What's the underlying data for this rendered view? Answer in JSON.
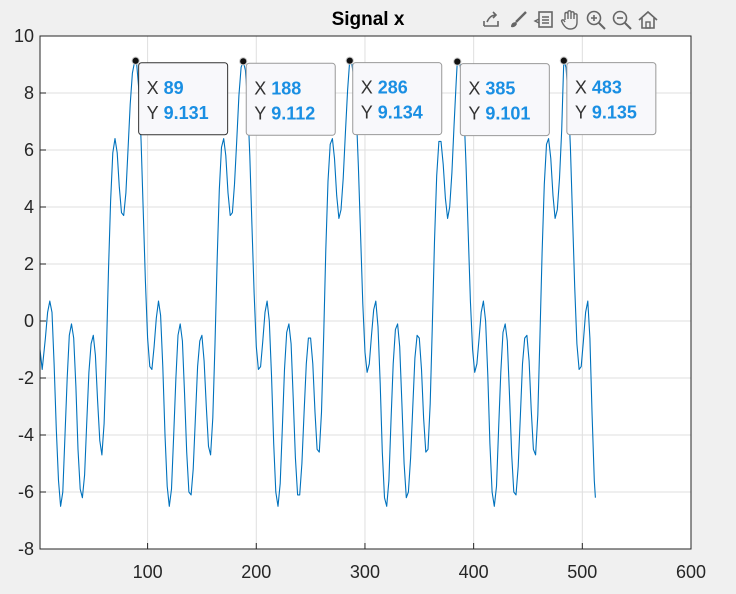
{
  "chart_data": {
    "type": "line",
    "title": "Signal x",
    "xlabel": "",
    "ylabel": "",
    "xlim": [
      1,
      600
    ],
    "ylim": [
      -8,
      10
    ],
    "xticks": [
      100,
      200,
      300,
      400,
      500,
      600
    ],
    "yticks": [
      -8,
      -6,
      -4,
      -2,
      0,
      2,
      4,
      6,
      8,
      10
    ],
    "grid": true,
    "line_color": "#0072BD",
    "datatip_value_color": "#1a8fe3",
    "series": [
      {
        "points": [
          [
            1,
            -1.0
          ],
          [
            3,
            -1.7
          ],
          [
            6,
            -0.6
          ],
          [
            8,
            0.3
          ],
          [
            10,
            0.7
          ],
          [
            12,
            0.3
          ],
          [
            14,
            -1.5
          ],
          [
            16,
            -3.8
          ],
          [
            18,
            -5.6
          ],
          [
            20,
            -6.5
          ],
          [
            22,
            -6.0
          ],
          [
            24,
            -4.0
          ],
          [
            26,
            -2.0
          ],
          [
            28,
            -0.5
          ],
          [
            30,
            -0.1
          ],
          [
            32,
            -0.6
          ],
          [
            34,
            -2.3
          ],
          [
            36,
            -4.5
          ],
          [
            38,
            -5.9
          ],
          [
            40,
            -6.2
          ],
          [
            42,
            -5.4
          ],
          [
            44,
            -3.6
          ],
          [
            46,
            -1.8
          ],
          [
            48,
            -0.8
          ],
          [
            50,
            -0.5
          ],
          [
            52,
            -1.2
          ],
          [
            54,
            -2.8
          ],
          [
            56,
            -4.2
          ],
          [
            58,
            -4.7
          ],
          [
            60,
            -3.6
          ],
          [
            62,
            -1.2
          ],
          [
            64,
            1.8
          ],
          [
            66,
            4.2
          ],
          [
            68,
            5.9
          ],
          [
            70,
            6.4
          ],
          [
            72,
            5.9
          ],
          [
            74,
            4.7
          ],
          [
            76,
            3.8
          ],
          [
            78,
            3.7
          ],
          [
            80,
            4.5
          ],
          [
            82,
            6.0
          ],
          [
            84,
            7.6
          ],
          [
            86,
            8.7
          ],
          [
            88,
            9.1
          ],
          [
            89,
            9.131
          ],
          [
            90,
            9.0
          ],
          [
            92,
            8.1
          ],
          [
            94,
            6.3
          ],
          [
            96,
            3.9
          ],
          [
            98,
            1.4
          ],
          [
            100,
            -0.6
          ],
          [
            102,
            -1.6
          ],
          [
            104,
            -1.7
          ],
          [
            106,
            -0.9
          ],
          [
            108,
            0.1
          ],
          [
            110,
            0.7
          ],
          [
            112,
            0.2
          ],
          [
            114,
            -1.6
          ],
          [
            116,
            -4.0
          ],
          [
            118,
            -5.8
          ],
          [
            120,
            -6.5
          ],
          [
            122,
            -5.9
          ],
          [
            124,
            -4.0
          ],
          [
            126,
            -2.0
          ],
          [
            128,
            -0.5
          ],
          [
            130,
            -0.1
          ],
          [
            132,
            -0.7
          ],
          [
            134,
            -2.5
          ],
          [
            136,
            -4.6
          ],
          [
            138,
            -6.0
          ],
          [
            140,
            -6.1
          ],
          [
            142,
            -5.2
          ],
          [
            144,
            -3.4
          ],
          [
            146,
            -1.6
          ],
          [
            148,
            -0.7
          ],
          [
            150,
            -0.5
          ],
          [
            152,
            -1.4
          ],
          [
            154,
            -3.0
          ],
          [
            156,
            -4.4
          ],
          [
            158,
            -4.7
          ],
          [
            160,
            -3.4
          ],
          [
            162,
            -0.8
          ],
          [
            164,
            2.2
          ],
          [
            166,
            4.6
          ],
          [
            168,
            6.1
          ],
          [
            170,
            6.4
          ],
          [
            172,
            5.8
          ],
          [
            174,
            4.5
          ],
          [
            176,
            3.7
          ],
          [
            178,
            3.8
          ],
          [
            180,
            4.8
          ],
          [
            182,
            6.3
          ],
          [
            184,
            7.9
          ],
          [
            186,
            8.9
          ],
          [
            188,
            9.112
          ],
          [
            190,
            8.8
          ],
          [
            192,
            7.7
          ],
          [
            194,
            5.8
          ],
          [
            196,
            3.4
          ],
          [
            198,
            1.0
          ],
          [
            200,
            -0.9
          ],
          [
            202,
            -1.7
          ],
          [
            204,
            -1.6
          ],
          [
            206,
            -0.7
          ],
          [
            208,
            0.3
          ],
          [
            210,
            0.7
          ],
          [
            212,
            0.0
          ],
          [
            214,
            -1.9
          ],
          [
            216,
            -4.3
          ],
          [
            218,
            -6.0
          ],
          [
            220,
            -6.5
          ],
          [
            222,
            -5.7
          ],
          [
            224,
            -3.7
          ],
          [
            226,
            -1.7
          ],
          [
            228,
            -0.4
          ],
          [
            230,
            -0.1
          ],
          [
            232,
            -0.8
          ],
          [
            234,
            -2.7
          ],
          [
            236,
            -4.8
          ],
          [
            238,
            -6.1
          ],
          [
            240,
            -6.1
          ],
          [
            242,
            -5.0
          ],
          [
            244,
            -3.2
          ],
          [
            246,
            -1.5
          ],
          [
            248,
            -0.6
          ],
          [
            250,
            -0.6
          ],
          [
            252,
            -1.5
          ],
          [
            254,
            -3.2
          ],
          [
            256,
            -4.5
          ],
          [
            258,
            -4.6
          ],
          [
            260,
            -3.2
          ],
          [
            262,
            -0.5
          ],
          [
            264,
            2.5
          ],
          [
            266,
            4.9
          ],
          [
            268,
            6.2
          ],
          [
            270,
            6.4
          ],
          [
            272,
            5.7
          ],
          [
            274,
            4.4
          ],
          [
            276,
            3.6
          ],
          [
            278,
            3.9
          ],
          [
            280,
            5.0
          ],
          [
            282,
            6.6
          ],
          [
            284,
            8.1
          ],
          [
            286,
            9.134
          ],
          [
            288,
            9.0
          ],
          [
            290,
            8.5
          ],
          [
            292,
            7.3
          ],
          [
            294,
            5.4
          ],
          [
            296,
            3.0
          ],
          [
            298,
            0.6
          ],
          [
            300,
            -1.1
          ],
          [
            302,
            -1.8
          ],
          [
            304,
            -1.5
          ],
          [
            306,
            -0.5
          ],
          [
            308,
            0.4
          ],
          [
            310,
            0.7
          ],
          [
            312,
            -0.2
          ],
          [
            314,
            -2.2
          ],
          [
            316,
            -4.6
          ],
          [
            318,
            -6.2
          ],
          [
            320,
            -6.5
          ],
          [
            322,
            -5.6
          ],
          [
            324,
            -3.5
          ],
          [
            326,
            -1.5
          ],
          [
            328,
            -0.3
          ],
          [
            330,
            -0.1
          ],
          [
            332,
            -0.9
          ],
          [
            334,
            -2.9
          ],
          [
            336,
            -5.0
          ],
          [
            338,
            -6.2
          ],
          [
            340,
            -6.0
          ],
          [
            342,
            -4.8
          ],
          [
            344,
            -3.0
          ],
          [
            346,
            -1.3
          ],
          [
            348,
            -0.5
          ],
          [
            350,
            -0.6
          ],
          [
            352,
            -1.7
          ],
          [
            354,
            -3.4
          ],
          [
            356,
            -4.6
          ],
          [
            358,
            -4.5
          ],
          [
            360,
            -2.9
          ],
          [
            362,
            -0.2
          ],
          [
            364,
            2.8
          ],
          [
            366,
            5.1
          ],
          [
            368,
            6.3
          ],
          [
            370,
            6.3
          ],
          [
            372,
            5.5
          ],
          [
            374,
            4.3
          ],
          [
            376,
            3.6
          ],
          [
            378,
            4.0
          ],
          [
            380,
            5.2
          ],
          [
            382,
            6.9
          ],
          [
            384,
            8.4
          ],
          [
            385,
            9.101
          ],
          [
            387,
            9.1
          ],
          [
            389,
            8.6
          ],
          [
            391,
            7.4
          ],
          [
            393,
            5.5
          ],
          [
            395,
            3.1
          ],
          [
            397,
            0.7
          ],
          [
            399,
            -1.0
          ],
          [
            401,
            -1.8
          ],
          [
            403,
            -1.5
          ],
          [
            405,
            -0.6
          ],
          [
            407,
            0.3
          ],
          [
            409,
            0.7
          ],
          [
            411,
            0.0
          ],
          [
            413,
            -1.9
          ],
          [
            415,
            -4.3
          ],
          [
            417,
            -6.0
          ],
          [
            419,
            -6.5
          ],
          [
            421,
            -5.8
          ],
          [
            423,
            -3.8
          ],
          [
            425,
            -1.8
          ],
          [
            427,
            -0.4
          ],
          [
            429,
            -0.1
          ],
          [
            431,
            -0.7
          ],
          [
            433,
            -2.6
          ],
          [
            435,
            -4.7
          ],
          [
            437,
            -6.0
          ],
          [
            439,
            -6.1
          ],
          [
            441,
            -5.1
          ],
          [
            443,
            -3.3
          ],
          [
            445,
            -1.5
          ],
          [
            447,
            -0.6
          ],
          [
            449,
            -0.5
          ],
          [
            451,
            -1.4
          ],
          [
            453,
            -3.1
          ],
          [
            455,
            -4.5
          ],
          [
            457,
            -4.7
          ],
          [
            459,
            -3.3
          ],
          [
            461,
            -0.6
          ],
          [
            463,
            2.4
          ],
          [
            465,
            4.8
          ],
          [
            467,
            6.2
          ],
          [
            469,
            6.4
          ],
          [
            471,
            5.7
          ],
          [
            473,
            4.4
          ],
          [
            475,
            3.6
          ],
          [
            477,
            3.9
          ],
          [
            479,
            5.0
          ],
          [
            481,
            6.7
          ],
          [
            482,
            8.0
          ],
          [
            483,
            9.135
          ],
          [
            485,
            8.9
          ],
          [
            487,
            7.9
          ],
          [
            489,
            6.1
          ],
          [
            491,
            3.7
          ],
          [
            493,
            1.2
          ],
          [
            495,
            -0.8
          ],
          [
            497,
            -1.7
          ],
          [
            499,
            -1.6
          ],
          [
            501,
            -0.7
          ],
          [
            503,
            0.3
          ],
          [
            505,
            0.7
          ],
          [
            507,
            -0.6
          ],
          [
            509,
            -3.3
          ],
          [
            511,
            -5.6
          ],
          [
            512,
            -6.2
          ]
        ]
      }
    ],
    "datatips": [
      {
        "x_label": "X",
        "x": "89",
        "y_label": "Y",
        "y": "9.131"
      },
      {
        "x_label": "X",
        "x": "188",
        "y_label": "Y",
        "y": "9.112"
      },
      {
        "x_label": "X",
        "x": "286",
        "y_label": "Y",
        "y": "9.134"
      },
      {
        "x_label": "X",
        "x": "385",
        "y_label": "Y",
        "y": "9.101"
      },
      {
        "x_label": "X",
        "x": "483",
        "y_label": "Y",
        "y": "9.135"
      }
    ]
  },
  "toolbar": {
    "icons": [
      "export-icon",
      "brush-icon",
      "datatip-icon",
      "pan-hand-icon",
      "zoom-in-icon",
      "zoom-out-icon",
      "home-icon"
    ]
  }
}
